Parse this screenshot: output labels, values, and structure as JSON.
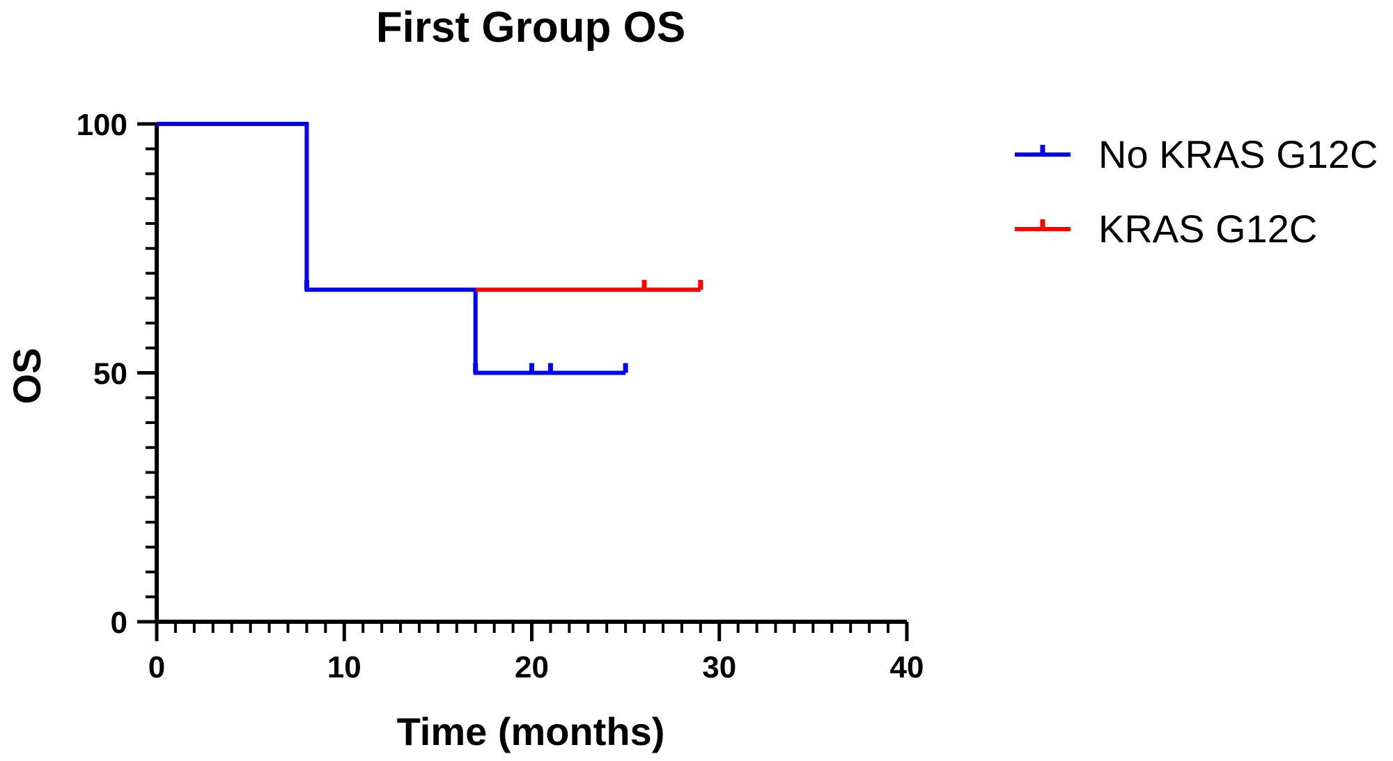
{
  "chart_data": {
    "type": "line",
    "subtype": "kaplan-meier-step",
    "title": "First Group OS",
    "xlabel": "Time (months)",
    "ylabel": "OS",
    "xlim": [
      0,
      40
    ],
    "ylim": [
      0,
      100
    ],
    "x_ticks": [
      "0",
      "10",
      "20",
      "30",
      "40"
    ],
    "y_ticks": [
      "0",
      "50",
      "100"
    ],
    "grid": false,
    "legend_position": "top-right",
    "series": [
      {
        "name": "No KRAS G12C",
        "color": "#0000ff",
        "steps": [
          [
            0,
            100
          ],
          [
            8,
            100
          ],
          [
            8,
            66.7
          ],
          [
            17,
            66.7
          ],
          [
            17,
            50
          ],
          [
            25,
            50
          ]
        ],
        "censor_marks": [
          [
            8,
            66.7
          ],
          [
            17,
            50
          ],
          [
            20,
            50
          ],
          [
            21,
            50
          ],
          [
            25,
            50
          ]
        ]
      },
      {
        "name": "KRAS G12C",
        "color": "#ff0000",
        "steps": [
          [
            17,
            66.7
          ],
          [
            29,
            66.7
          ]
        ],
        "censor_marks": [
          [
            26,
            66.7
          ],
          [
            29,
            66.7
          ]
        ]
      }
    ]
  }
}
